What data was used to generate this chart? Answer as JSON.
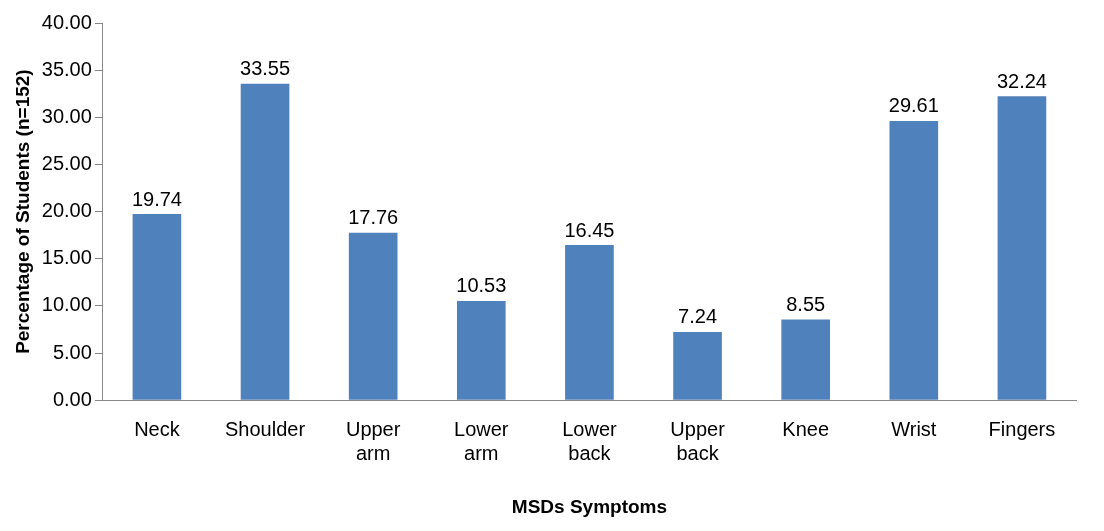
{
  "chart_data": {
    "type": "bar",
    "xlabel": "MSDs Symptoms",
    "ylabel": "Percentage of Students (n=152)",
    "categories": [
      "Neck",
      "Shoulder",
      "Upper arm",
      "Lower arm",
      "Lower back",
      "Upper back",
      "Knee",
      "Wrist",
      "Fingers"
    ],
    "values": [
      19.74,
      33.55,
      17.76,
      10.53,
      16.45,
      7.24,
      8.55,
      29.61,
      32.24
    ],
    "color": "#4f81bd",
    "ylim": [
      0,
      40
    ],
    "yticks": [
      {
        "value": 0,
        "label": "0.00"
      },
      {
        "value": 5,
        "label": "5.00"
      },
      {
        "value": 10,
        "label": "10.00"
      },
      {
        "value": 15,
        "label": "15.00"
      },
      {
        "value": 20,
        "label": "20.00"
      },
      {
        "value": 25,
        "label": "25.00"
      },
      {
        "value": 30,
        "label": "30.00"
      },
      {
        "value": 35,
        "label": "35.00"
      },
      {
        "value": 40,
        "label": "40.00"
      }
    ],
    "grid": false,
    "legend": false,
    "data_labels": true
  }
}
